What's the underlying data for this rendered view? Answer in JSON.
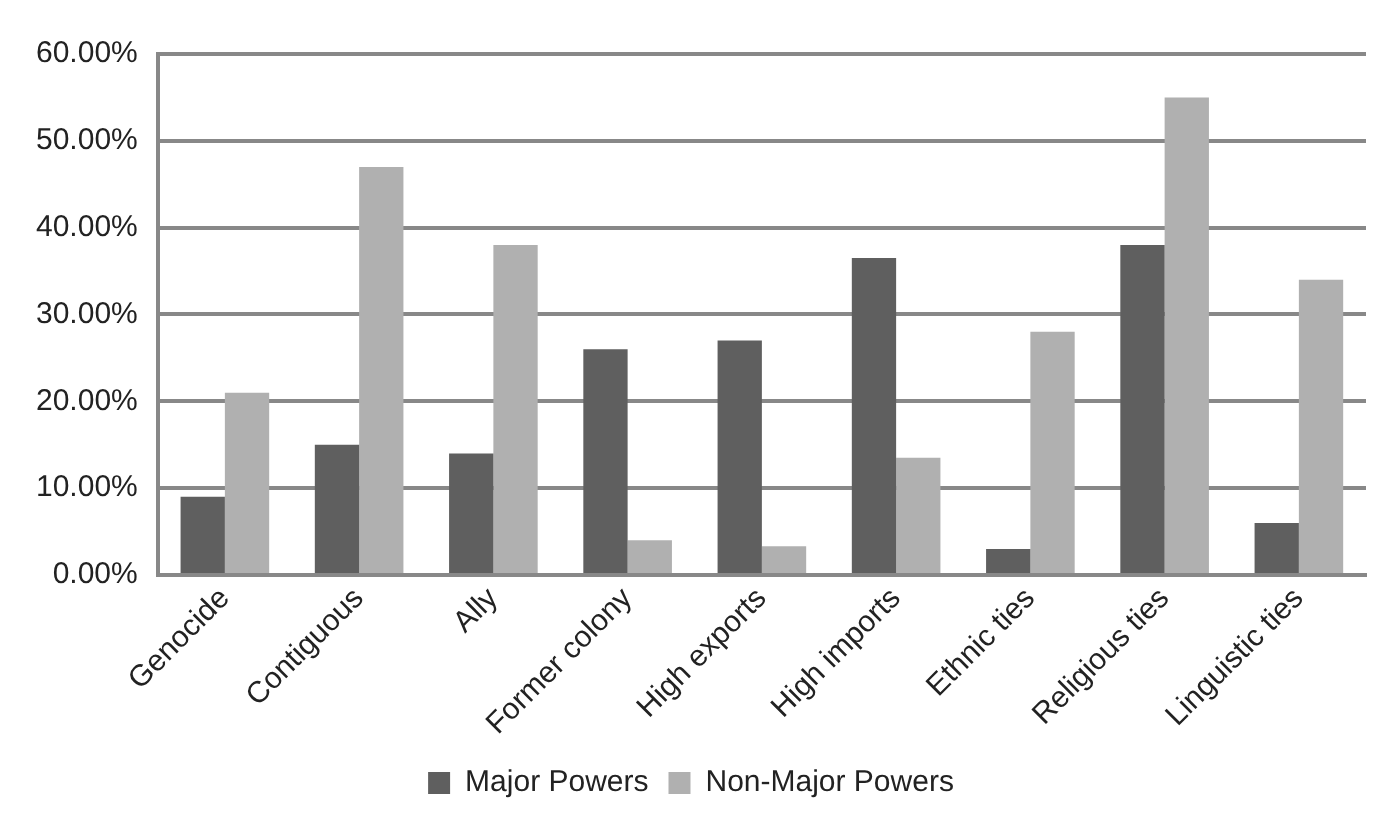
{
  "chart_data": {
    "type": "bar",
    "categories": [
      "Genocide",
      "Contiguous",
      "Ally",
      "Former colony",
      "High exports",
      "High imports",
      "Ethnic ties",
      "Religious ties",
      "Linguistic ties"
    ],
    "series": [
      {
        "name": "Major Powers",
        "color": "#5f5f5f",
        "values": [
          0.09,
          0.15,
          0.14,
          0.26,
          0.27,
          0.365,
          0.03,
          0.38,
          0.06
        ]
      },
      {
        "name": "Non-Major Powers",
        "color": "#b0b0b0",
        "values": [
          0.21,
          0.47,
          0.38,
          0.04,
          0.033,
          0.135,
          0.28,
          0.55,
          0.34
        ]
      }
    ],
    "ylim": [
      0,
      0.6
    ],
    "yticks": [
      {
        "value": 0,
        "label": "0.00%"
      },
      {
        "value": 0.1,
        "label": "10.00%"
      },
      {
        "value": 0.2,
        "label": "20.00%"
      },
      {
        "value": 0.3,
        "label": "30.00%"
      },
      {
        "value": 0.4,
        "label": "40.00%"
      },
      {
        "value": 0.5,
        "label": "50.00%"
      },
      {
        "value": 0.6,
        "label": "60.00%"
      }
    ],
    "grid": "y",
    "legend": "bottom"
  }
}
